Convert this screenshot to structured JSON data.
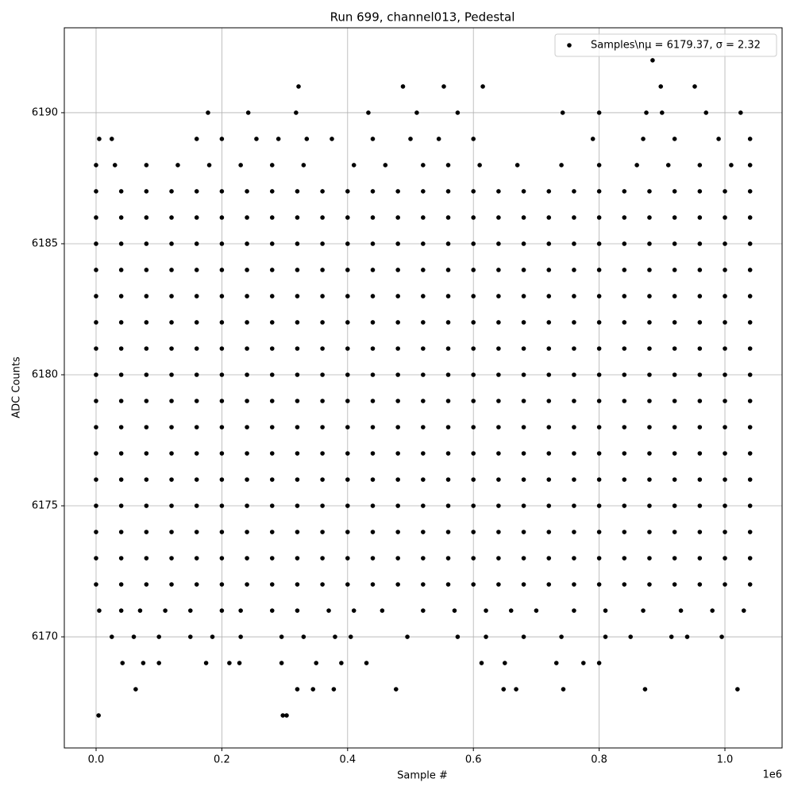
{
  "chart_data": {
    "type": "scatter",
    "title": "Run 699, channel013, Pedestal",
    "x_label": "Sample #",
    "y_label": "ADC Counts",
    "x_offset_label": "1e6",
    "xlim": [
      -50500,
      1090900
    ],
    "ylim": [
      6165.76,
      6193.24
    ],
    "xticks": [
      {
        "value": 0,
        "label": "0.0"
      },
      {
        "value": 200000,
        "label": "0.2"
      },
      {
        "value": 400000,
        "label": "0.4"
      },
      {
        "value": 600000,
        "label": "0.6"
      },
      {
        "value": 800000,
        "label": "0.8"
      },
      {
        "value": 1000000,
        "label": "1.0"
      }
    ],
    "yticks": [
      6170,
      6175,
      6180,
      6185,
      6190
    ],
    "grid": true,
    "legend": "upper right",
    "series": [
      {
        "name": "Samples\\nμ = 6179.37, σ = 2.32",
        "color": "#000000",
        "x": [
          885000,
          322000,
          488000,
          553000,
          615000,
          898000,
          952000,
          178000,
          242000,
          318000,
          433000,
          510000,
          575000,
          742000,
          800000,
          875000,
          900000,
          970000,
          1025000,
          5000,
          25000,
          160000,
          200000,
          255000,
          290000,
          335000,
          375000,
          440000,
          500000,
          545000,
          600000,
          790000,
          870000,
          920000,
          990000,
          1040000,
          0,
          30000,
          80000,
          130000,
          180000,
          230000,
          280000,
          330000,
          410000,
          460000,
          520000,
          560000,
          610000,
          670000,
          740000,
          800000,
          860000,
          910000,
          960000,
          1010000,
          1040000,
          0,
          40000,
          80000,
          120000,
          160000,
          200000,
          240000,
          280000,
          320000,
          360000,
          400000,
          440000,
          480000,
          520000,
          560000,
          600000,
          640000,
          680000,
          720000,
          760000,
          800000,
          840000,
          880000,
          920000,
          960000,
          1000000,
          1040000,
          0,
          40000,
          80000,
          120000,
          160000,
          200000,
          240000,
          280000,
          320000,
          360000,
          400000,
          440000,
          480000,
          520000,
          560000,
          600000,
          640000,
          680000,
          720000,
          760000,
          800000,
          840000,
          880000,
          920000,
          960000,
          1000000,
          1040000,
          0,
          40000,
          80000,
          120000,
          160000,
          200000,
          240000,
          280000,
          320000,
          360000,
          400000,
          440000,
          480000,
          520000,
          560000,
          600000,
          640000,
          680000,
          720000,
          760000,
          800000,
          840000,
          880000,
          920000,
          960000,
          1000000,
          1040000,
          0,
          40000,
          80000,
          120000,
          160000,
          200000,
          240000,
          280000,
          320000,
          360000,
          400000,
          440000,
          480000,
          520000,
          560000,
          600000,
          640000,
          680000,
          720000,
          760000,
          800000,
          840000,
          880000,
          920000,
          960000,
          1000000,
          1040000,
          0,
          40000,
          80000,
          120000,
          160000,
          200000,
          240000,
          280000,
          320000,
          360000,
          400000,
          440000,
          480000,
          520000,
          560000,
          600000,
          640000,
          680000,
          720000,
          760000,
          800000,
          840000,
          880000,
          920000,
          960000,
          1000000,
          1040000,
          0,
          40000,
          80000,
          120000,
          160000,
          200000,
          240000,
          280000,
          320000,
          360000,
          400000,
          440000,
          480000,
          520000,
          560000,
          600000,
          640000,
          680000,
          720000,
          760000,
          800000,
          840000,
          880000,
          920000,
          960000,
          1000000,
          1040000,
          0,
          40000,
          80000,
          120000,
          160000,
          200000,
          240000,
          280000,
          320000,
          360000,
          400000,
          440000,
          480000,
          520000,
          560000,
          600000,
          640000,
          680000,
          720000,
          760000,
          800000,
          840000,
          880000,
          920000,
          960000,
          1000000,
          1040000,
          0,
          40000,
          80000,
          120000,
          160000,
          200000,
          240000,
          280000,
          320000,
          360000,
          400000,
          440000,
          480000,
          520000,
          560000,
          600000,
          640000,
          680000,
          720000,
          760000,
          800000,
          840000,
          880000,
          920000,
          960000,
          1000000,
          1040000,
          0,
          40000,
          80000,
          120000,
          160000,
          200000,
          240000,
          280000,
          320000,
          360000,
          400000,
          440000,
          480000,
          520000,
          560000,
          600000,
          640000,
          680000,
          720000,
          760000,
          800000,
          840000,
          880000,
          920000,
          960000,
          1000000,
          1040000,
          0,
          40000,
          80000,
          120000,
          160000,
          200000,
          240000,
          280000,
          320000,
          360000,
          400000,
          440000,
          480000,
          520000,
          560000,
          600000,
          640000,
          680000,
          720000,
          760000,
          800000,
          840000,
          880000,
          920000,
          960000,
          1000000,
          1040000,
          0,
          40000,
          80000,
          120000,
          160000,
          200000,
          240000,
          280000,
          320000,
          360000,
          400000,
          440000,
          480000,
          520000,
          560000,
          600000,
          640000,
          680000,
          720000,
          760000,
          800000,
          840000,
          880000,
          920000,
          960000,
          1000000,
          1040000,
          0,
          40000,
          80000,
          120000,
          160000,
          200000,
          240000,
          280000,
          320000,
          360000,
          400000,
          440000,
          480000,
          520000,
          560000,
          600000,
          640000,
          680000,
          720000,
          760000,
          800000,
          840000,
          880000,
          920000,
          960000,
          1000000,
          1040000,
          0,
          40000,
          80000,
          120000,
          160000,
          200000,
          240000,
          280000,
          320000,
          360000,
          400000,
          440000,
          480000,
          520000,
          560000,
          600000,
          640000,
          680000,
          720000,
          760000,
          800000,
          840000,
          880000,
          920000,
          960000,
          1000000,
          1040000,
          0,
          40000,
          80000,
          120000,
          160000,
          200000,
          240000,
          280000,
          320000,
          360000,
          400000,
          440000,
          480000,
          520000,
          560000,
          600000,
          640000,
          680000,
          720000,
          760000,
          800000,
          840000,
          880000,
          920000,
          960000,
          1000000,
          1040000,
          0,
          40000,
          80000,
          120000,
          160000,
          200000,
          240000,
          280000,
          320000,
          360000,
          400000,
          440000,
          480000,
          520000,
          560000,
          600000,
          640000,
          680000,
          720000,
          760000,
          800000,
          840000,
          880000,
          920000,
          960000,
          1000000,
          1040000,
          0,
          40000,
          80000,
          120000,
          160000,
          200000,
          240000,
          280000,
          320000,
          360000,
          400000,
          440000,
          480000,
          520000,
          560000,
          600000,
          640000,
          680000,
          720000,
          760000,
          800000,
          840000,
          880000,
          920000,
          960000,
          1000000,
          1040000,
          5000,
          40000,
          70000,
          110000,
          150000,
          200000,
          230000,
          280000,
          320000,
          370000,
          410000,
          455000,
          520000,
          570000,
          620000,
          660000,
          700000,
          760000,
          810000,
          870000,
          930000,
          980000,
          1030000,
          25000,
          60000,
          100000,
          150000,
          185000,
          230000,
          295000,
          330000,
          380000,
          405000,
          495000,
          575000,
          620000,
          680000,
          740000,
          810000,
          850000,
          915000,
          940000,
          995000,
          42000,
          75000,
          100000,
          175000,
          212000,
          228000,
          295000,
          350000,
          390000,
          430000,
          613000,
          650000,
          732000,
          775000,
          800000,
          63000,
          320000,
          345000,
          378000,
          477000,
          648000,
          668000,
          743000,
          873000,
          1020000,
          4000,
          297000,
          303000
        ],
        "values": [
          6192,
          6191,
          6191,
          6191,
          6191,
          6191,
          6191,
          6190,
          6190,
          6190,
          6190,
          6190,
          6190,
          6190,
          6190,
          6190,
          6190,
          6190,
          6190,
          6189,
          6189,
          6189,
          6189,
          6189,
          6189,
          6189,
          6189,
          6189,
          6189,
          6189,
          6189,
          6189,
          6189,
          6189,
          6189,
          6189,
          6188,
          6188,
          6188,
          6188,
          6188,
          6188,
          6188,
          6188,
          6188,
          6188,
          6188,
          6188,
          6188,
          6188,
          6188,
          6188,
          6188,
          6188,
          6188,
          6188,
          6188,
          6187,
          6187,
          6187,
          6187,
          6187,
          6187,
          6187,
          6187,
          6187,
          6187,
          6187,
          6187,
          6187,
          6187,
          6187,
          6187,
          6187,
          6187,
          6187,
          6187,
          6187,
          6187,
          6187,
          6187,
          6187,
          6187,
          6187,
          6186,
          6186,
          6186,
          6186,
          6186,
          6186,
          6186,
          6186,
          6186,
          6186,
          6186,
          6186,
          6186,
          6186,
          6186,
          6186,
          6186,
          6186,
          6186,
          6186,
          6186,
          6186,
          6186,
          6186,
          6186,
          6186,
          6186,
          6185,
          6185,
          6185,
          6185,
          6185,
          6185,
          6185,
          6185,
          6185,
          6185,
          6185,
          6185,
          6185,
          6185,
          6185,
          6185,
          6185,
          6185,
          6185,
          6185,
          6185,
          6185,
          6185,
          6185,
          6185,
          6185,
          6185,
          6184,
          6184,
          6184,
          6184,
          6184,
          6184,
          6184,
          6184,
          6184,
          6184,
          6184,
          6184,
          6184,
          6184,
          6184,
          6184,
          6184,
          6184,
          6184,
          6184,
          6184,
          6184,
          6184,
          6184,
          6184,
          6184,
          6184,
          6183,
          6183,
          6183,
          6183,
          6183,
          6183,
          6183,
          6183,
          6183,
          6183,
          6183,
          6183,
          6183,
          6183,
          6183,
          6183,
          6183,
          6183,
          6183,
          6183,
          6183,
          6183,
          6183,
          6183,
          6183,
          6183,
          6183,
          6182,
          6182,
          6182,
          6182,
          6182,
          6182,
          6182,
          6182,
          6182,
          6182,
          6182,
          6182,
          6182,
          6182,
          6182,
          6182,
          6182,
          6182,
          6182,
          6182,
          6182,
          6182,
          6182,
          6182,
          6182,
          6182,
          6182,
          6181,
          6181,
          6181,
          6181,
          6181,
          6181,
          6181,
          6181,
          6181,
          6181,
          6181,
          6181,
          6181,
          6181,
          6181,
          6181,
          6181,
          6181,
          6181,
          6181,
          6181,
          6181,
          6181,
          6181,
          6181,
          6181,
          6181,
          6180,
          6180,
          6180,
          6180,
          6180,
          6180,
          6180,
          6180,
          6180,
          6180,
          6180,
          6180,
          6180,
          6180,
          6180,
          6180,
          6180,
          6180,
          6180,
          6180,
          6180,
          6180,
          6180,
          6180,
          6180,
          6180,
          6180,
          6179,
          6179,
          6179,
          6179,
          6179,
          6179,
          6179,
          6179,
          6179,
          6179,
          6179,
          6179,
          6179,
          6179,
          6179,
          6179,
          6179,
          6179,
          6179,
          6179,
          6179,
          6179,
          6179,
          6179,
          6179,
          6179,
          6179,
          6178,
          6178,
          6178,
          6178,
          6178,
          6178,
          6178,
          6178,
          6178,
          6178,
          6178,
          6178,
          6178,
          6178,
          6178,
          6178,
          6178,
          6178,
          6178,
          6178,
          6178,
          6178,
          6178,
          6178,
          6178,
          6178,
          6178,
          6177,
          6177,
          6177,
          6177,
          6177,
          6177,
          6177,
          6177,
          6177,
          6177,
          6177,
          6177,
          6177,
          6177,
          6177,
          6177,
          6177,
          6177,
          6177,
          6177,
          6177,
          6177,
          6177,
          6177,
          6177,
          6177,
          6177,
          6176,
          6176,
          6176,
          6176,
          6176,
          6176,
          6176,
          6176,
          6176,
          6176,
          6176,
          6176,
          6176,
          6176,
          6176,
          6176,
          6176,
          6176,
          6176,
          6176,
          6176,
          6176,
          6176,
          6176,
          6176,
          6176,
          6176,
          6175,
          6175,
          6175,
          6175,
          6175,
          6175,
          6175,
          6175,
          6175,
          6175,
          6175,
          6175,
          6175,
          6175,
          6175,
          6175,
          6175,
          6175,
          6175,
          6175,
          6175,
          6175,
          6175,
          6175,
          6175,
          6175,
          6175,
          6174,
          6174,
          6174,
          6174,
          6174,
          6174,
          6174,
          6174,
          6174,
          6174,
          6174,
          6174,
          6174,
          6174,
          6174,
          6174,
          6174,
          6174,
          6174,
          6174,
          6174,
          6174,
          6174,
          6174,
          6174,
          6174,
          6174,
          6173,
          6173,
          6173,
          6173,
          6173,
          6173,
          6173,
          6173,
          6173,
          6173,
          6173,
          6173,
          6173,
          6173,
          6173,
          6173,
          6173,
          6173,
          6173,
          6173,
          6173,
          6173,
          6173,
          6173,
          6173,
          6173,
          6173,
          6172,
          6172,
          6172,
          6172,
          6172,
          6172,
          6172,
          6172,
          6172,
          6172,
          6172,
          6172,
          6172,
          6172,
          6172,
          6172,
          6172,
          6172,
          6172,
          6172,
          6172,
          6172,
          6172,
          6172,
          6172,
          6172,
          6172,
          6171,
          6171,
          6171,
          6171,
          6171,
          6171,
          6171,
          6171,
          6171,
          6171,
          6171,
          6171,
          6171,
          6171,
          6171,
          6171,
          6171,
          6171,
          6171,
          6171,
          6171,
          6171,
          6171,
          6170,
          6170,
          6170,
          6170,
          6170,
          6170,
          6170,
          6170,
          6170,
          6170,
          6170,
          6170,
          6170,
          6170,
          6170,
          6170,
          6170,
          6170,
          6170,
          6170,
          6169,
          6169,
          6169,
          6169,
          6169,
          6169,
          6169,
          6169,
          6169,
          6169,
          6169,
          6169,
          6169,
          6169,
          6169,
          6168,
          6168,
          6168,
          6168,
          6168,
          6168,
          6168,
          6168,
          6168,
          6168,
          6167,
          6167,
          6167
        ]
      }
    ]
  }
}
